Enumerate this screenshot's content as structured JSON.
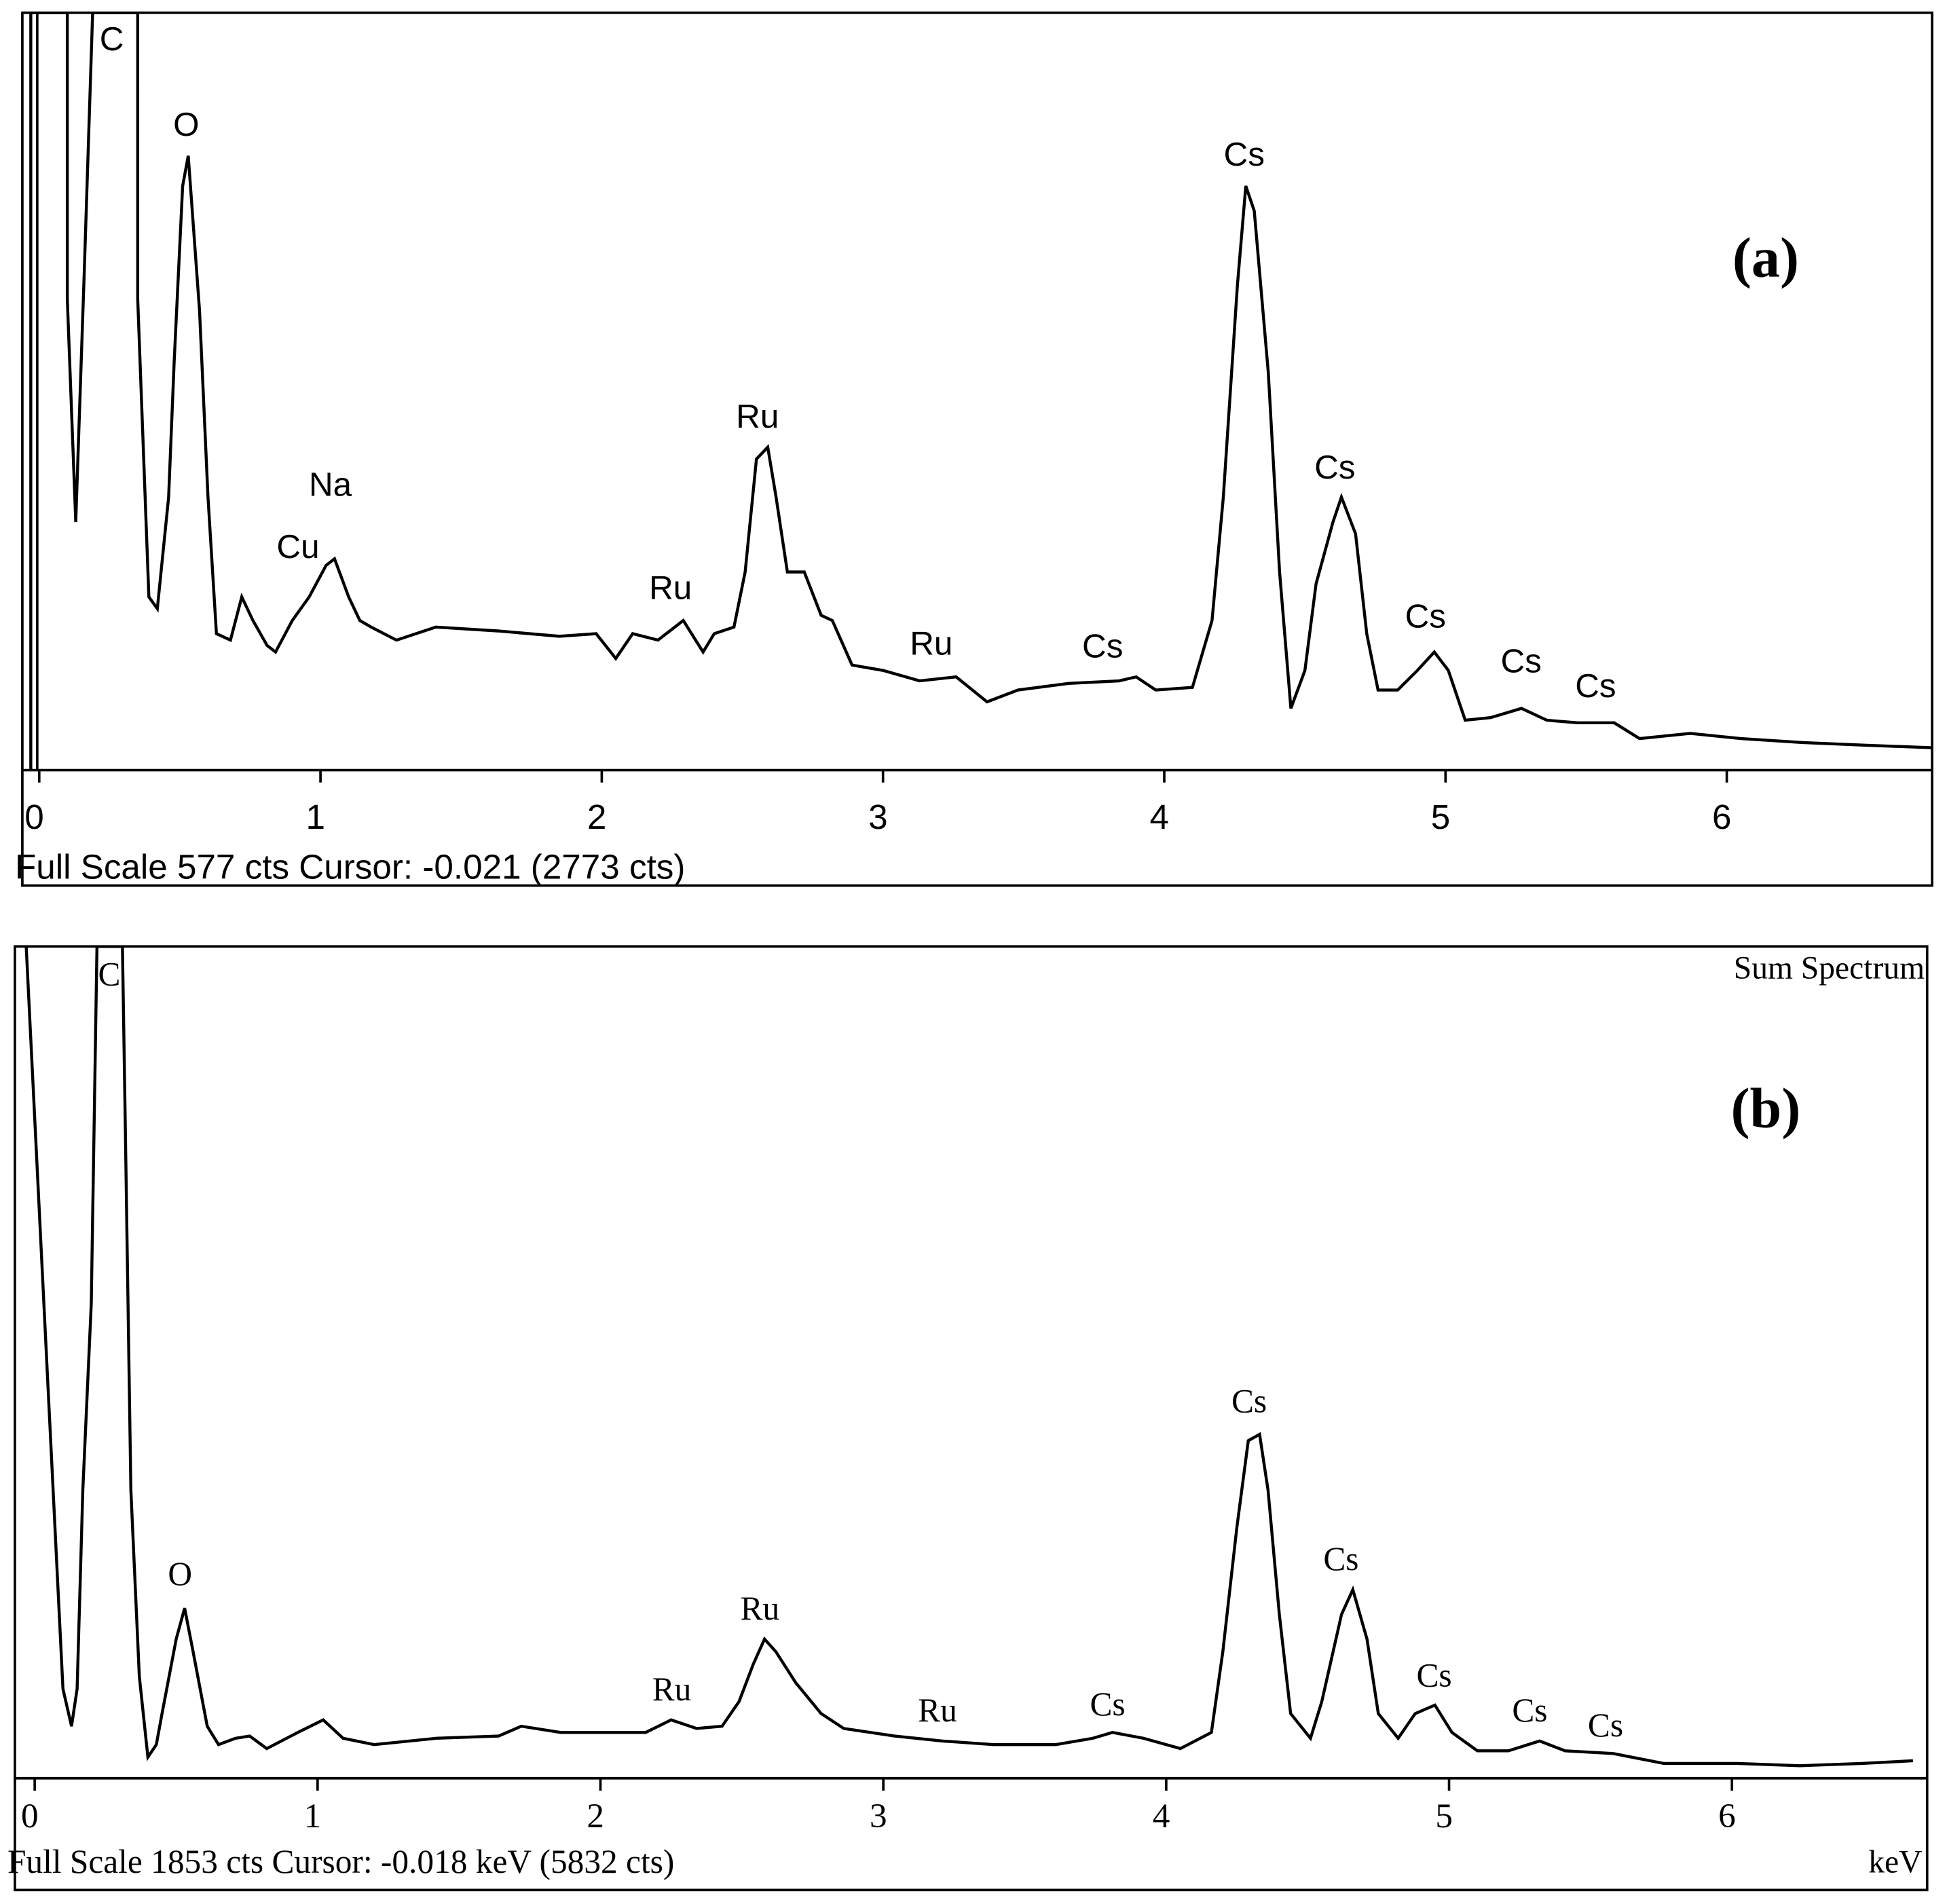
{
  "chart_data": [
    {
      "type": "line",
      "panel_label": "(a)",
      "color": "#000000",
      "footer": "Full Scale 577 cts Cursor: -0.021  (2773 cts)",
      "xlim": [
        -0.06,
        6.73
      ],
      "ylim": [
        0,
        577
      ],
      "xticks": [
        0,
        1,
        2,
        3,
        4,
        5,
        6
      ],
      "annotations": [
        "C",
        "O",
        "Na",
        "Cu",
        "Ru",
        "Ru",
        "Ru",
        "Cs",
        "Cs",
        "Cs",
        "Cs",
        "Cs",
        "Cs"
      ],
      "x": [
        -0.03,
        -0.03,
        0.1,
        0.1,
        0.13,
        0.16,
        0.19,
        0.35,
        0.35,
        0.39,
        0.42,
        0.46,
        0.48,
        0.51,
        0.53,
        0.57,
        0.6,
        0.63,
        0.68,
        0.72,
        0.76,
        0.81,
        0.84,
        0.9,
        0.96,
        1.02,
        1.05,
        1.1,
        1.14,
        1.18,
        1.27,
        1.41,
        1.63,
        1.85,
        1.98,
        2.05,
        2.11,
        2.2,
        2.29,
        2.36,
        2.4,
        2.47,
        2.51,
        2.55,
        2.59,
        2.62,
        2.66,
        2.72,
        2.78,
        2.82,
        2.89,
        3.0,
        3.13,
        3.26,
        3.37,
        3.48,
        3.66,
        3.84,
        3.9,
        3.97,
        4.1,
        4.17,
        4.21,
        4.26,
        4.29,
        4.32,
        4.37,
        4.41,
        4.45,
        4.5,
        4.54,
        4.6,
        4.63,
        4.68,
        4.72,
        4.76,
        4.83,
        4.9,
        4.96,
        5.01,
        5.07,
        5.16,
        5.27,
        5.36,
        5.47,
        5.6,
        5.69,
        5.87,
        6.05,
        6.27,
        6.49,
        6.73
      ],
      "values": [
        0,
        577,
        577,
        359,
        189,
        378,
        577,
        577,
        359,
        132,
        123,
        208,
        312,
        445,
        468,
        350,
        208,
        104,
        99,
        132,
        114,
        95,
        90,
        114,
        132,
        156,
        161,
        132,
        114,
        109,
        99,
        109,
        106,
        102,
        104,
        85,
        104,
        99,
        114,
        90,
        104,
        109,
        151,
        237,
        246,
        208,
        151,
        151,
        118,
        114,
        80,
        76,
        68,
        71,
        52,
        61,
        66,
        68,
        71,
        61,
        63,
        114,
        208,
        369,
        445,
        426,
        303,
        151,
        47,
        76,
        142,
        189,
        208,
        180,
        104,
        61,
        61,
        76,
        90,
        76,
        38,
        40,
        47,
        38,
        36,
        36,
        24,
        28,
        24,
        21,
        19,
        17
      ]
    },
    {
      "type": "line",
      "panel_label": "(b)",
      "color": "#000000",
      "subtitle": "Sum Spectrum",
      "footer": "Full Scale 1853 cts  Cursor: -0.018 keV (5832 cts)",
      "x_unit": "keV",
      "xlim": [
        -0.07,
        6.69
      ],
      "ylim": [
        0,
        1853
      ],
      "xticks": [
        0,
        1,
        2,
        3,
        4,
        5,
        6
      ],
      "annotations": [
        "C",
        "O",
        "Ru",
        "Ru",
        "Ru",
        "Cs",
        "Cs",
        "Cs",
        "Cs",
        "Cs",
        "Cs"
      ],
      "x": [
        -0.03,
        0.1,
        0.13,
        0.15,
        0.17,
        0.2,
        0.22,
        0.31,
        0.32,
        0.34,
        0.37,
        0.4,
        0.43,
        0.45,
        0.5,
        0.53,
        0.56,
        0.61,
        0.65,
        0.71,
        0.76,
        0.82,
        0.93,
        1.02,
        1.09,
        1.2,
        1.42,
        1.64,
        1.72,
        1.86,
        1.99,
        2.16,
        2.25,
        2.34,
        2.43,
        2.49,
        2.54,
        2.58,
        2.62,
        2.69,
        2.78,
        2.86,
        3.04,
        3.21,
        3.39,
        3.61,
        3.74,
        3.81,
        3.92,
        4.05,
        4.16,
        4.2,
        4.25,
        4.29,
        4.33,
        4.36,
        4.4,
        4.44,
        4.51,
        4.55,
        4.62,
        4.66,
        4.71,
        4.75,
        4.82,
        4.88,
        4.95,
        5.01,
        5.1,
        5.21,
        5.32,
        5.41,
        5.58,
        5.76,
        6.02,
        6.24,
        6.46,
        6.64
      ],
      "values": [
        1853,
        199,
        116,
        199,
        642,
        1057,
        1853,
        1853,
        1472,
        642,
        227,
        47,
        75,
        144,
        310,
        379,
        282,
        116,
        75,
        89,
        94,
        66,
        102,
        130,
        89,
        75,
        89,
        94,
        116,
        102,
        102,
        102,
        130,
        111,
        116,
        171,
        254,
        310,
        282,
        213,
        144,
        111,
        94,
        83,
        75,
        75,
        89,
        102,
        89,
        66,
        102,
        282,
        559,
        752,
        766,
        642,
        365,
        144,
        89,
        171,
        365,
        420,
        310,
        144,
        89,
        144,
        163,
        102,
        61,
        61,
        83,
        61,
        55,
        33,
        33,
        28,
        33,
        39
      ]
    }
  ]
}
